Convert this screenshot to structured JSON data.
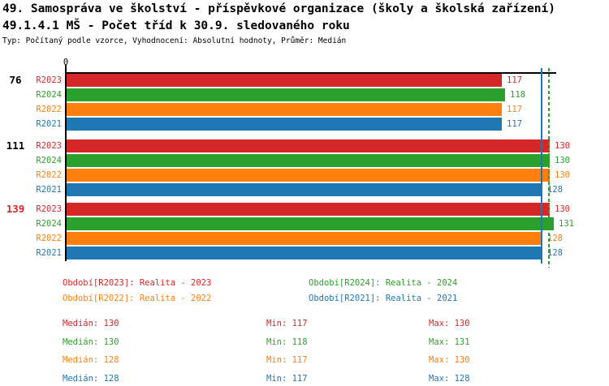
{
  "header": {
    "title_line1": "49. Samospráva ve školství - příspěvkové organizace (školy a školská zařízení)",
    "title_line2": "49.1.4.1 MŠ - Počet tříd k 30.9. sledovaného roku",
    "meta_line": "Typ: Počítaný podle vzorce, Vyhodnocení: Absolutní hodnoty, Průměr: Medián"
  },
  "chart_data": {
    "type": "bar",
    "orientation": "horizontal",
    "title": "49.1.4.1 MŠ - Počet tříd k 30.9. sledovaného roku",
    "x_axis": {
      "origin_label": "0",
      "min": 0,
      "max": 132,
      "gridlines": false
    },
    "series_order": [
      "R2023",
      "R2024",
      "R2022",
      "R2021"
    ],
    "series_colors": {
      "R2023": "#d62728",
      "R2024": "#2ca02c",
      "R2022": "#ff7f0e",
      "R2021": "#1f77b4"
    },
    "groups": [
      {
        "label": "76",
        "label_color": "#000000",
        "values": {
          "R2023": 117,
          "R2024": 118,
          "R2022": 117,
          "R2021": 117
        }
      },
      {
        "label": "111",
        "label_color": "#000000",
        "values": {
          "R2023": 130,
          "R2024": 130,
          "R2022": 130,
          "R2021": 128
        }
      },
      {
        "label": "139",
        "label_color": "#d62728",
        "values": {
          "R2023": 130,
          "R2024": 131,
          "R2022": 128,
          "R2021": 128
        }
      }
    ],
    "reference_lines": [
      {
        "value": 128,
        "color": "#1f77b4",
        "style": "solid"
      },
      {
        "value": 130,
        "color": "#2ca02c",
        "style": "dashed"
      }
    ]
  },
  "legend": {
    "items": [
      {
        "label": "Období[R2023]: Realita - 2023",
        "color": "#d62728",
        "row": 0,
        "col": 0
      },
      {
        "label": "Období[R2024]: Realita - 2024",
        "color": "#2ca02c",
        "row": 0,
        "col": 1
      },
      {
        "label": "Období[R2022]: Realita - 2022",
        "color": "#ff7f0e",
        "row": 1,
        "col": 0
      },
      {
        "label": "Období[R2021]: Realita - 2021",
        "color": "#1f77b4",
        "row": 1,
        "col": 1
      }
    ]
  },
  "stats": {
    "median_prefix": "Medián",
    "min_prefix": "Min",
    "max_prefix": "Max",
    "rows": [
      {
        "series": "R2023",
        "color": "#d62728",
        "median": 130,
        "min": 117,
        "max": 130
      },
      {
        "series": "R2024",
        "color": "#2ca02c",
        "median": 130,
        "min": 118,
        "max": 131
      },
      {
        "series": "R2022",
        "color": "#ff7f0e",
        "median": 128,
        "min": 117,
        "max": 130
      },
      {
        "series": "R2021",
        "color": "#1f77b4",
        "median": 128,
        "min": 117,
        "max": 128
      }
    ]
  }
}
